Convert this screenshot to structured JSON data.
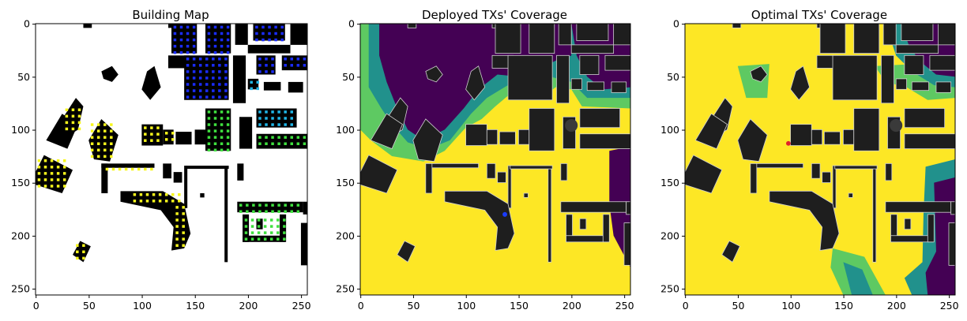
{
  "chart_data": [
    {
      "type": "heatmap",
      "title": "Building Map",
      "xlim": [
        0,
        255
      ],
      "ylim": [
        255,
        0
      ],
      "x_ticks": [
        0,
        50,
        100,
        150,
        200,
        250
      ],
      "y_ticks": [
        0,
        50,
        100,
        150,
        200,
        250
      ],
      "tick_labels": {
        "x": [
          "0",
          "50",
          "100",
          "150",
          "200",
          "250"
        ],
        "y": [
          "0",
          "50",
          "100",
          "150",
          "200",
          "250"
        ]
      },
      "colors": {
        "background": "#ffffff",
        "building": "#000000",
        "marker_yellow": "#f7f71c",
        "marker_blue": "#1a2cff",
        "marker_cyan": "#1fb6e8",
        "marker_green": "#3fe03f"
      }
    },
    {
      "type": "heatmap",
      "title": "Deployed TXs' Coverage",
      "xlim": [
        0,
        255
      ],
      "ylim": [
        255,
        0
      ],
      "x_ticks": [
        0,
        50,
        100,
        150,
        200,
        250
      ],
      "y_ticks": [
        0,
        50,
        100,
        150,
        200,
        250
      ],
      "tick_labels": {
        "x": [
          "0",
          "50",
          "100",
          "150",
          "200",
          "250"
        ],
        "y": [
          "0",
          "50",
          "100",
          "150",
          "200",
          "250"
        ]
      },
      "transmitter": {
        "x": 137,
        "y": 180,
        "color": "#1a3cff"
      },
      "colors": {
        "high": "#fde725",
        "mid_high": "#5ec962",
        "mid": "#21918c",
        "low": "#440154",
        "building": "#1e1e1e"
      }
    },
    {
      "type": "heatmap",
      "title": "Optimal TXs' Coverage",
      "xlim": [
        0,
        255
      ],
      "ylim": [
        255,
        0
      ],
      "x_ticks": [
        0,
        50,
        100,
        150,
        200,
        250
      ],
      "y_ticks": [
        0,
        50,
        100,
        150,
        200,
        250
      ],
      "tick_labels": {
        "x": [
          "0",
          "50",
          "100",
          "150",
          "200",
          "250"
        ],
        "y": [
          "0",
          "50",
          "100",
          "150",
          "200",
          "250"
        ]
      },
      "transmitter": {
        "x": 98,
        "y": 113,
        "color": "#e0202a"
      },
      "colors": {
        "high": "#fde725",
        "mid_high": "#5ec962",
        "mid": "#21918c",
        "low": "#440154",
        "building": "#1e1e1e"
      }
    }
  ]
}
